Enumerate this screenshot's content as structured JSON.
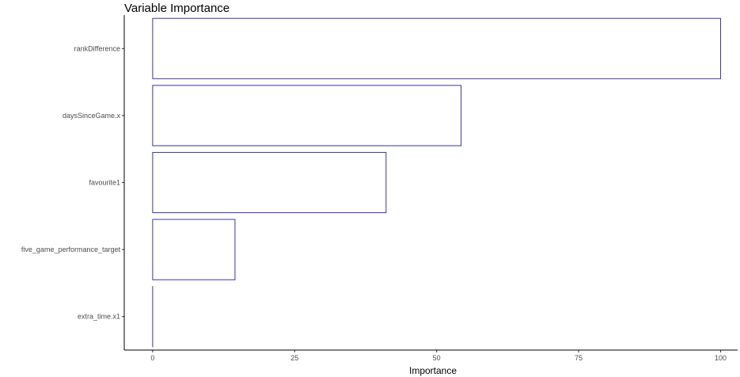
{
  "chart_data": {
    "type": "bar",
    "orientation": "horizontal",
    "title": "Variable Importance",
    "xlabel": "Importance",
    "ylabel": "",
    "categories": [
      "rankDifference",
      "daysSinceGame.x",
      "favourite1",
      "five_game_performance_target",
      "extra_time.x1"
    ],
    "values": [
      100,
      54.3,
      41.1,
      14.5,
      0
    ],
    "xlim": [
      -5,
      103
    ],
    "xticks": [
      0,
      25,
      50,
      75,
      100
    ],
    "grid": false,
    "bar_fill": "#ffffff",
    "bar_outline": "#3a35a0",
    "legend": "none"
  }
}
